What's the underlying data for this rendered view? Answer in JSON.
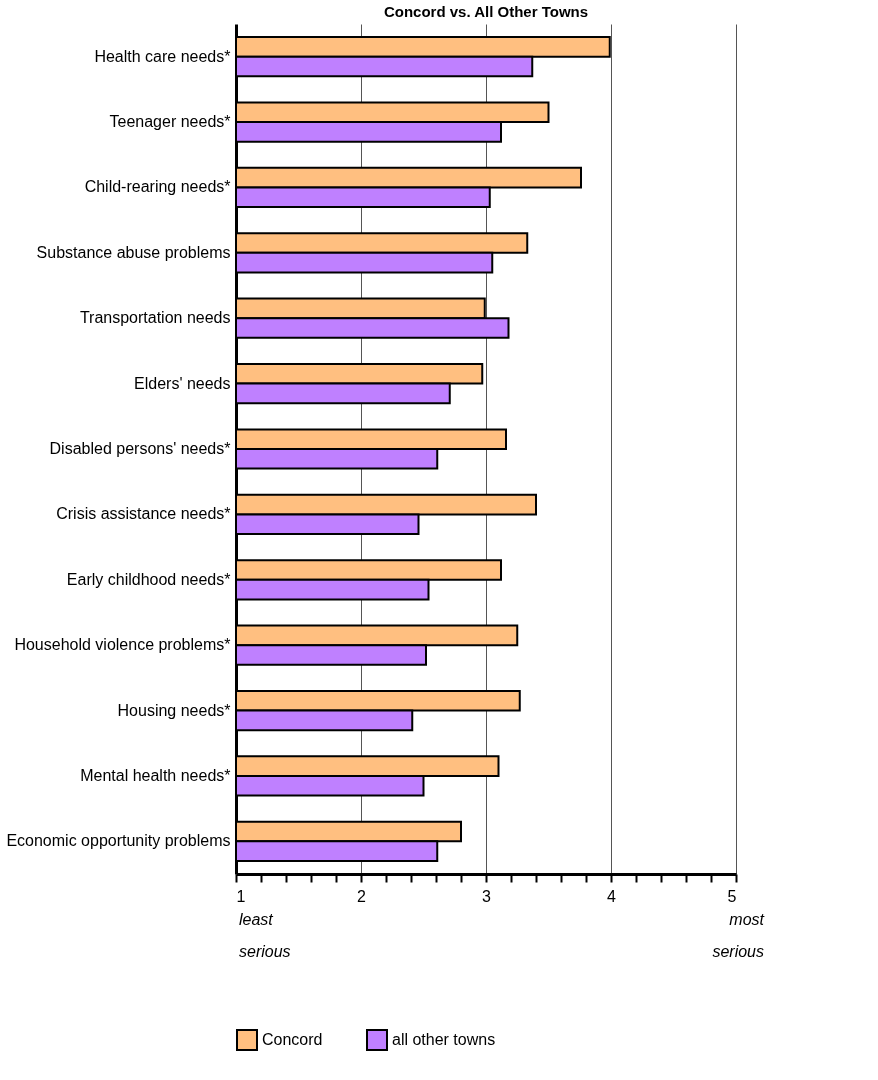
{
  "chart_data": {
    "type": "bar",
    "orientation": "horizontal",
    "title": "Concord vs. All Other Towns",
    "categories": [
      "Health care needs*",
      "Teenager needs*",
      "Child-rearing needs*",
      "Substance abuse problems",
      "Transportation needs",
      "Elders' needs",
      "Disabled persons' needs*",
      "Crisis assistance needs*",
      "Early childhood needs*",
      "Household violence problems*",
      "Housing needs*",
      "Mental health needs*",
      "Economic opportunity problems"
    ],
    "series": [
      {
        "name": "Concord",
        "color": "#ffbf80",
        "values": [
          3.99,
          3.5,
          3.76,
          3.33,
          2.99,
          2.97,
          3.16,
          3.4,
          3.12,
          3.25,
          3.27,
          3.1,
          2.8
        ]
      },
      {
        "name": "all other towns",
        "color": "#bf80ff",
        "values": [
          3.37,
          3.12,
          3.03,
          3.05,
          3.18,
          2.71,
          2.61,
          2.46,
          2.54,
          2.52,
          2.41,
          2.5,
          2.61
        ]
      }
    ],
    "xlim": [
      1,
      5
    ],
    "xticks": [
      1,
      {
        "value": 1.2,
        "label": null
      },
      {
        "value": 1.4,
        "label": null
      },
      {
        "value": 1.6,
        "label": null
      },
      {
        "value": 1.8,
        "label": null
      },
      2,
      {
        "value": 2.2,
        "label": null
      },
      {
        "value": 2.4,
        "label": null
      },
      {
        "value": 2.6,
        "label": null
      },
      {
        "value": 2.8,
        "label": null
      },
      3,
      {
        "value": 3.2,
        "label": null
      },
      {
        "value": 3.4,
        "label": null
      },
      {
        "value": 3.6,
        "label": null
      },
      {
        "value": 3.8,
        "label": null
      },
      4,
      {
        "value": 4.2,
        "label": null
      },
      {
        "value": 4.4,
        "label": null
      },
      {
        "value": 4.6,
        "label": null
      },
      {
        "value": 4.8,
        "label": null
      },
      5
    ],
    "grid": "x",
    "legend": "bottom",
    "annotations": [
      "least serious",
      "most serious"
    ]
  }
}
